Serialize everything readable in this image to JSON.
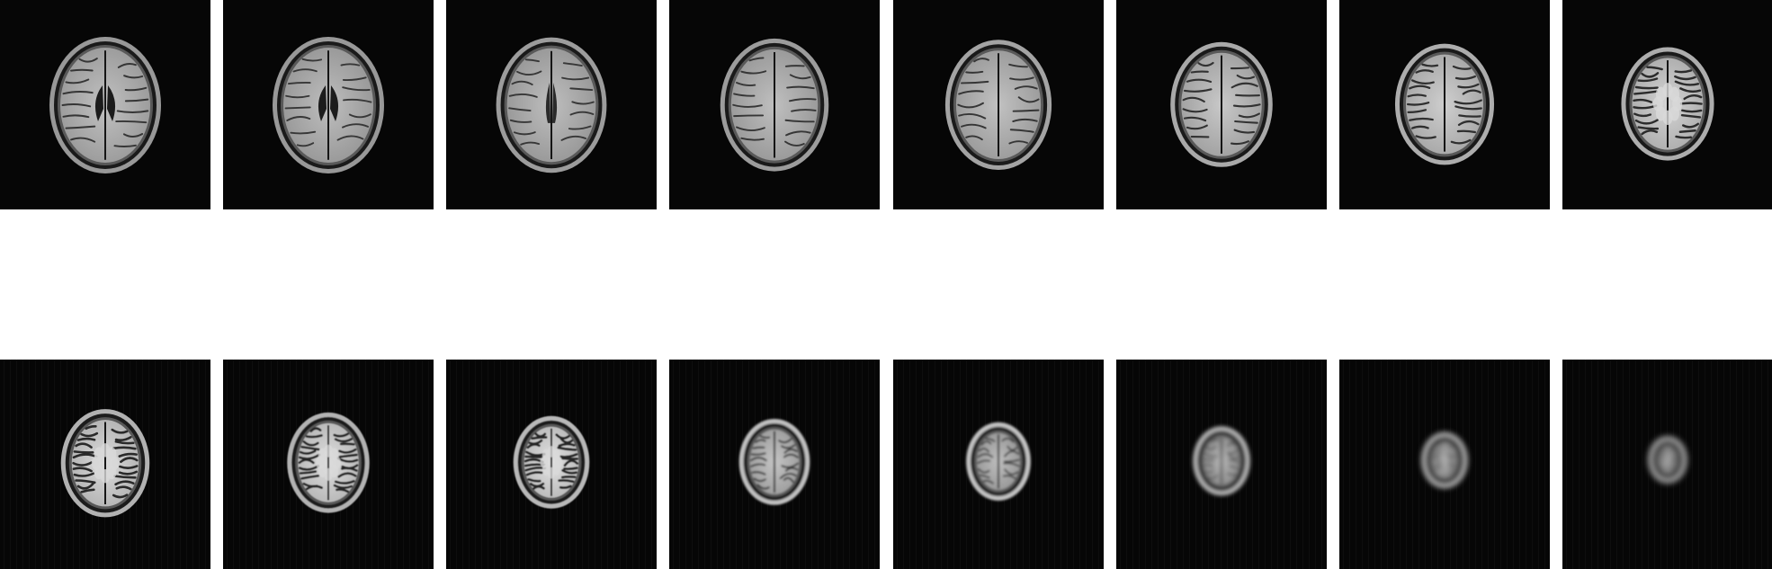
{
  "figure": {
    "description_kind": "mri-axial-slice-montage",
    "rows": 2,
    "columns": 8
  },
  "slices": [
    {
      "index": 1,
      "stage": "lateral-ventricles",
      "brain_size": 1.0,
      "scalp_brightness": 0.7,
      "gyri_contrast": 0.35,
      "blur": 0.0,
      "ventricle": "butterfly"
    },
    {
      "index": 2,
      "stage": "lateral-ventricles",
      "brain_size": 1.0,
      "scalp_brightness": 0.7,
      "gyri_contrast": 0.3,
      "blur": 0.0,
      "ventricle": "butterfly"
    },
    {
      "index": 3,
      "stage": "upper-ventricles",
      "brain_size": 0.99,
      "scalp_brightness": 0.72,
      "gyri_contrast": 0.3,
      "blur": 0.0,
      "ventricle": "slit"
    },
    {
      "index": 4,
      "stage": "centrum-semiovale",
      "brain_size": 0.97,
      "scalp_brightness": 0.72,
      "gyri_contrast": 0.32,
      "blur": 0.0,
      "ventricle": "none"
    },
    {
      "index": 5,
      "stage": "centrum-semiovale",
      "brain_size": 0.95,
      "scalp_brightness": 0.75,
      "gyri_contrast": 0.35,
      "blur": 0.0,
      "ventricle": "none"
    },
    {
      "index": 6,
      "stage": "high-convexity",
      "brain_size": 0.91,
      "scalp_brightness": 0.78,
      "gyri_contrast": 0.45,
      "blur": 0.0,
      "ventricle": "none"
    },
    {
      "index": 7,
      "stage": "high-convexity",
      "brain_size": 0.88,
      "scalp_brightness": 0.8,
      "gyri_contrast": 0.55,
      "blur": 0.0,
      "ventricle": "none"
    },
    {
      "index": 8,
      "stage": "vertex-approach",
      "brain_size": 0.82,
      "scalp_brightness": 0.8,
      "gyri_contrast": 0.65,
      "blur": 0.0,
      "ventricle": "none"
    },
    {
      "index": 9,
      "stage": "vertex-approach",
      "brain_size": 0.78,
      "scalp_brightness": 0.82,
      "gyri_contrast": 0.75,
      "blur": 0.2,
      "ventricle": "none"
    },
    {
      "index": 10,
      "stage": "near-vertex",
      "brain_size": 0.72,
      "scalp_brightness": 0.82,
      "gyri_contrast": 0.8,
      "blur": 0.4,
      "ventricle": "none"
    },
    {
      "index": 11,
      "stage": "near-vertex",
      "brain_size": 0.66,
      "scalp_brightness": 0.85,
      "gyri_contrast": 0.85,
      "blur": 0.6,
      "ventricle": "none"
    },
    {
      "index": 12,
      "stage": "vertex-scalp",
      "brain_size": 0.61,
      "scalp_brightness": 0.88,
      "gyri_contrast": 0.4,
      "blur": 1.0,
      "ventricle": "none"
    },
    {
      "index": 13,
      "stage": "vertex-scalp",
      "brain_size": 0.55,
      "scalp_brightness": 0.9,
      "gyri_contrast": 0.3,
      "blur": 1.3,
      "ventricle": "none"
    },
    {
      "index": 14,
      "stage": "scalp-only",
      "brain_size": 0.48,
      "scalp_brightness": 0.85,
      "gyri_contrast": 0.15,
      "blur": 2.2,
      "ventricle": "none"
    },
    {
      "index": 15,
      "stage": "scalp-only",
      "brain_size": 0.38,
      "scalp_brightness": 0.8,
      "gyri_contrast": 0.1,
      "blur": 2.8,
      "ventricle": "none"
    },
    {
      "index": 16,
      "stage": "scalp-only",
      "brain_size": 0.31,
      "scalp_brightness": 0.75,
      "gyri_contrast": 0.0,
      "blur": 3.2,
      "ventricle": "none"
    }
  ]
}
